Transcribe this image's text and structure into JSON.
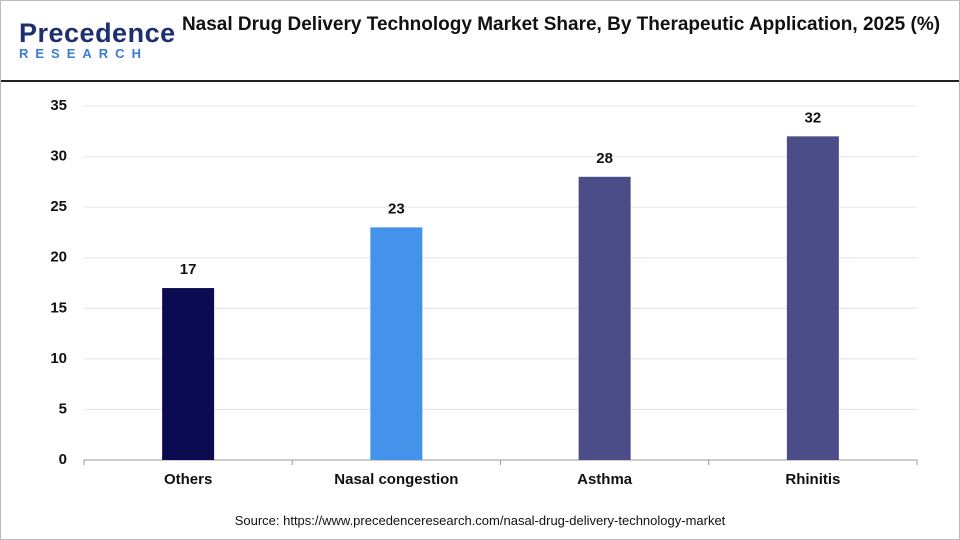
{
  "logo": {
    "name": "Precedence",
    "tagline": "RESEARCH"
  },
  "chart_data": {
    "type": "bar",
    "title": "Nasal Drug Delivery Technology Market Share, By Therapeutic Application, 2025 (%)",
    "categories": [
      "Others",
      "Nasal congestion",
      "Asthma",
      "Rhinitis"
    ],
    "values": [
      17,
      23,
      28,
      32
    ],
    "colors": [
      "#0b0b52",
      "#4592ea",
      "#4a4d88",
      "#4a4d88"
    ],
    "ylim": [
      0,
      35
    ],
    "yticks": [
      0,
      5,
      10,
      15,
      20,
      25,
      30,
      35
    ],
    "grid": true
  },
  "source": "Source: https://www.precedenceresearch.com/nasal-drug-delivery-technology-market"
}
